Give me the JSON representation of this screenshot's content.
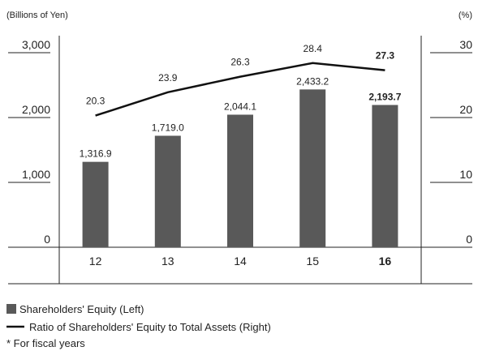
{
  "chart_data": {
    "type": "bar",
    "y_axis_label": "(Billions of Yen)",
    "y2_axis_label": "(%)",
    "categories": [
      "12",
      "13",
      "14",
      "15",
      "16"
    ],
    "series": [
      {
        "name": "Shareholders' Equity (Left)",
        "type": "bar",
        "color": "#595959",
        "values": [
          1316.9,
          1719.0,
          2044.1,
          2433.2,
          2193.7
        ],
        "value_labels": [
          "1,316.9",
          "1,719.0",
          "2,044.1",
          "2,433.2",
          "2,193.7"
        ]
      },
      {
        "name": "Ratio of Shareholders' Equity to Total Assets (Right)",
        "type": "line",
        "axis": "y2",
        "color": "#111111",
        "values": [
          20.3,
          23.9,
          26.3,
          28.4,
          27.3
        ]
      }
    ],
    "ylim": [
      0,
      3000
    ],
    "yticks": [
      0,
      {
        "value": 1000,
        "label": "1,000"
      },
      {
        "value": 2000,
        "label": "2,000"
      },
      {
        "value": 3000,
        "label": "3,000"
      }
    ],
    "y2lim": [
      0,
      30
    ],
    "y2ticks": [
      0,
      10,
      20,
      30
    ],
    "footnote": "* For fiscal years"
  }
}
